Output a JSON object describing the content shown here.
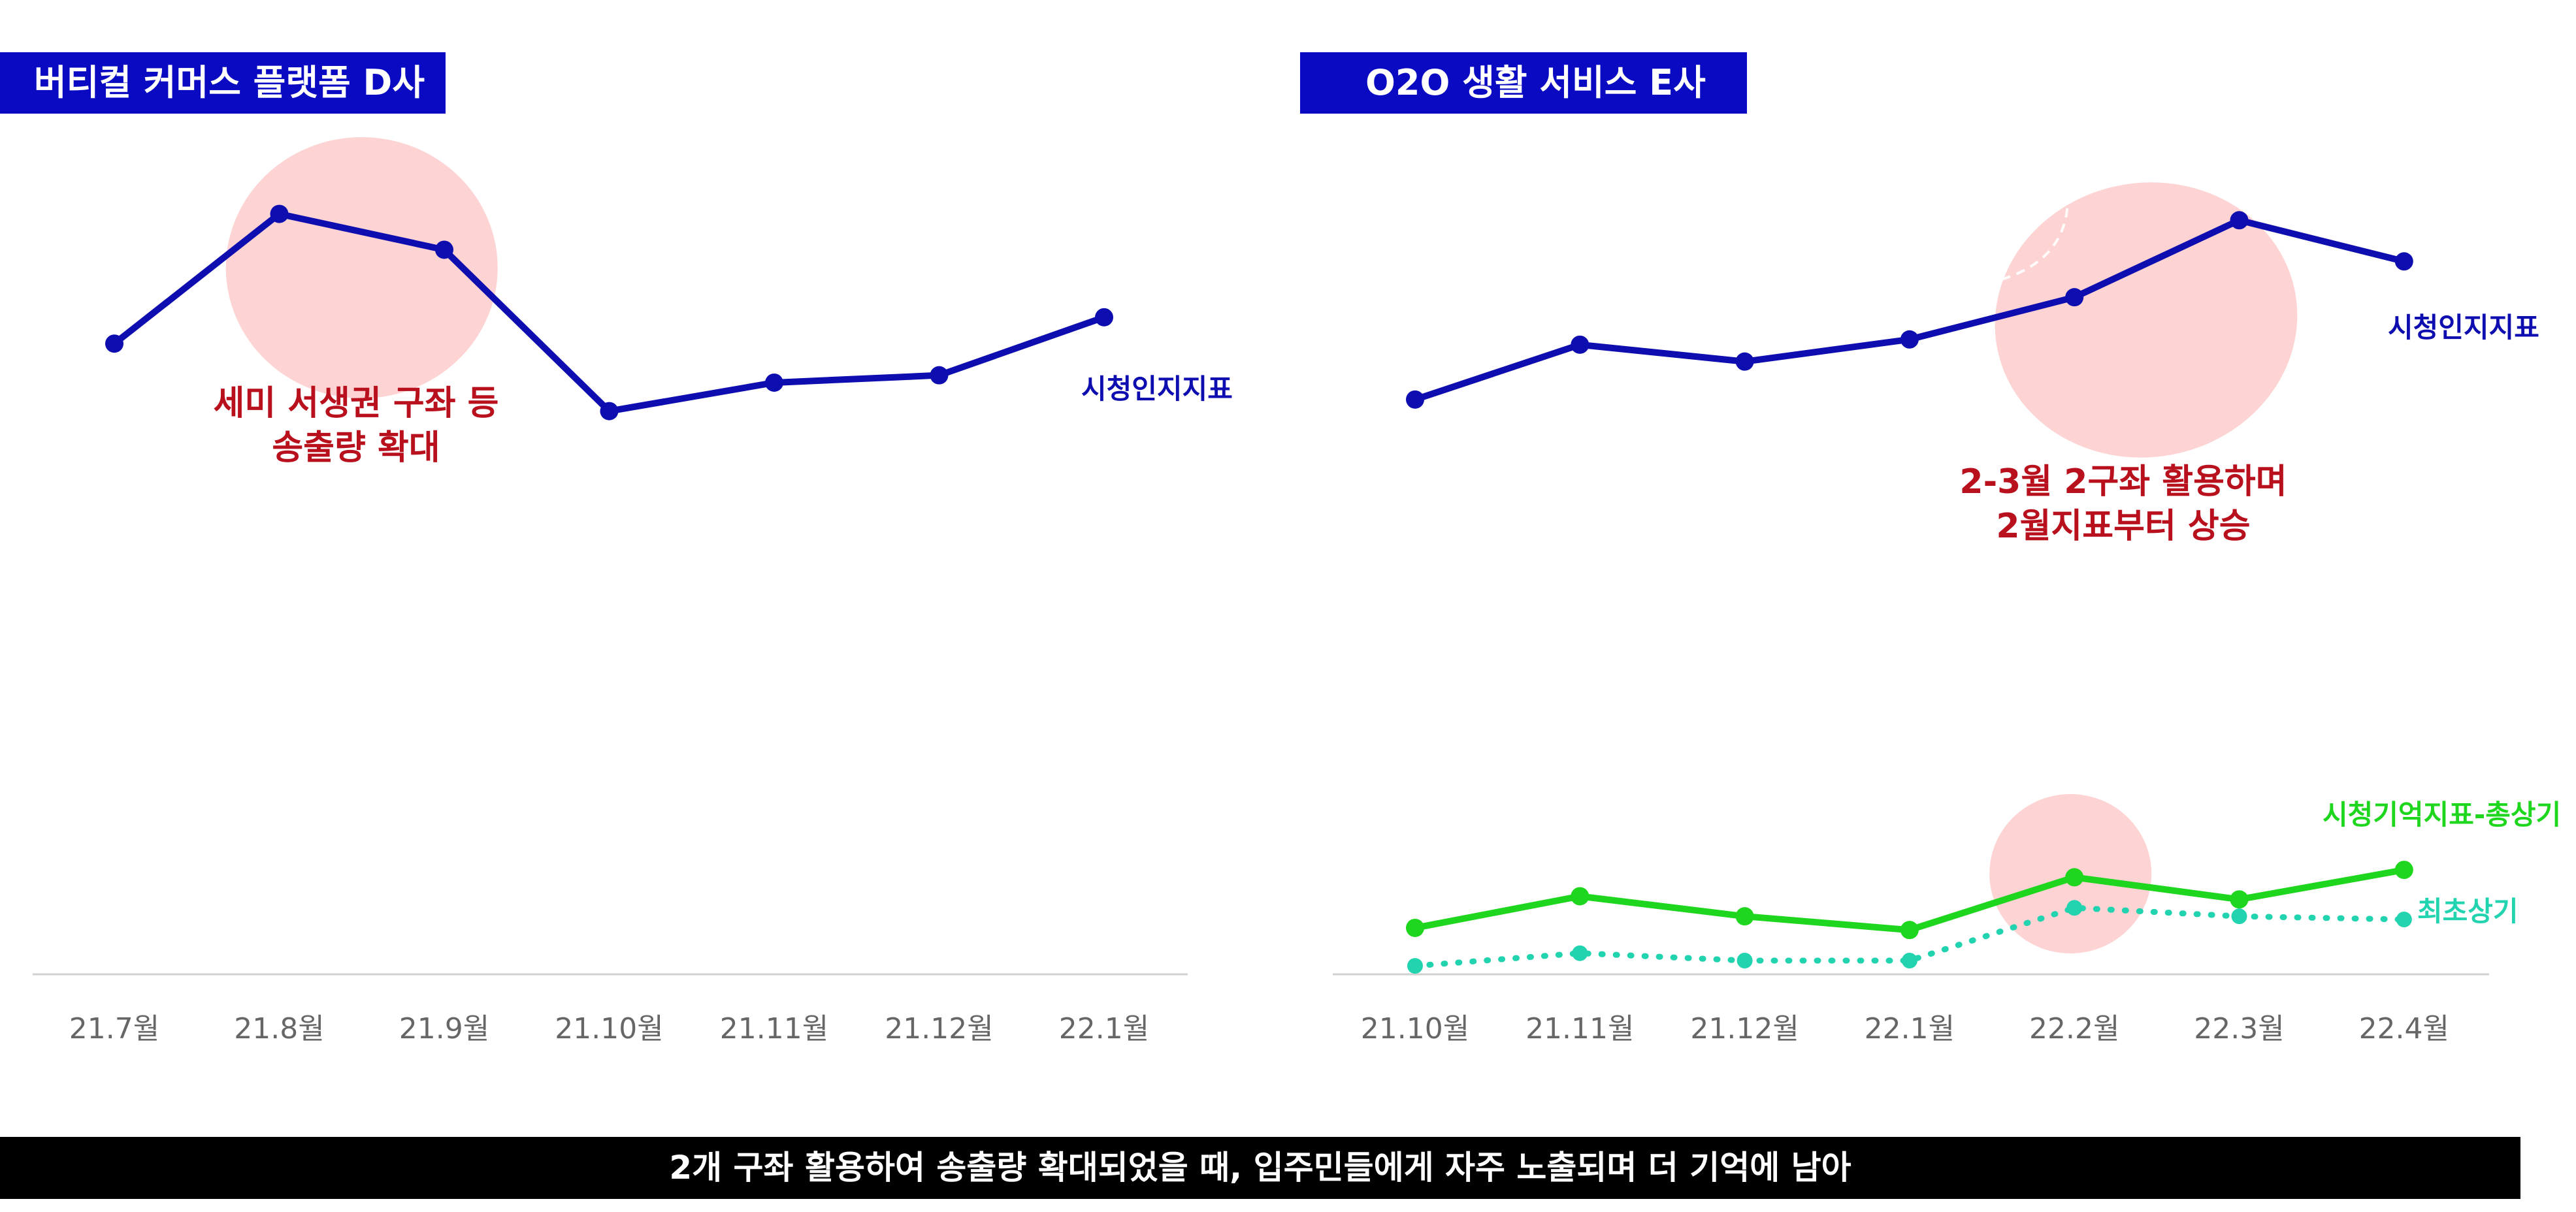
{
  "footer": {
    "text": "2개 구좌 활용하여 송출량 확대되었을 때, 입주민들에게 자주 노출되며 더 기억에 남아"
  },
  "colors": {
    "title_bg": "#0a0ac2",
    "awareness": "#0e0eb0",
    "memory_total": "#1ed61e",
    "memory_first": "#22d3b0",
    "highlight": "#fdd3d3",
    "annotation": "#b8101c",
    "axis": "#d0d0d0",
    "tick": "#666666"
  },
  "chart_data": [
    {
      "type": "line",
      "title": "버티컬 커머스 플랫폼 D사",
      "categories": [
        "21.7월",
        "21.8월",
        "21.9월",
        "21.10월",
        "21.11월",
        "21.12월",
        "22.1월"
      ],
      "series": [
        {
          "name": "시청인지지표",
          "style": "solid",
          "values": [
            59.8,
            72.1,
            68.7,
            53.4,
            56.1,
            56.8,
            62.3
          ]
        }
      ],
      "ylim": [
        0,
        80
      ],
      "grid": false,
      "legend": "inline labels at line ends",
      "annotations": [
        {
          "text_lines": [
            "세미 서생권 구좌 등",
            "송출량 확대"
          ],
          "highlight_categories": [
            "21.8월",
            "21.9월"
          ]
        }
      ]
    },
    {
      "type": "line",
      "title": "O2O 생활 서비스 E사",
      "categories": [
        "21.10월",
        "21.11월",
        "21.12월",
        "22.1월",
        "22.2월",
        "22.3월",
        "22.4월"
      ],
      "series": [
        {
          "name": "시청인지지표",
          "style": "solid",
          "values": [
            54.5,
            59.7,
            58.1,
            60.2,
            64.2,
            71.5,
            67.6
          ]
        },
        {
          "name": "시청기억지표-총상기",
          "style": "solid",
          "values": [
            4.4,
            7.4,
            5.5,
            4.2,
            9.2,
            7.1,
            9.9
          ]
        },
        {
          "name": "최초상기",
          "style": "dotted",
          "values": [
            0.8,
            2.0,
            1.3,
            1.3,
            6.3,
            5.5,
            5.2
          ]
        }
      ],
      "ylim": [
        0,
        80
      ],
      "grid": false,
      "legend": "inline labels at line ends",
      "annotations": [
        {
          "text_lines": [
            "2-3월 2구좌 활용하며",
            "2월지표부터 상승"
          ],
          "highlight_categories": [
            "22.2월",
            "22.3월"
          ]
        },
        {
          "text_lines": [],
          "highlight_categories": [
            "22.2월"
          ]
        }
      ]
    }
  ]
}
